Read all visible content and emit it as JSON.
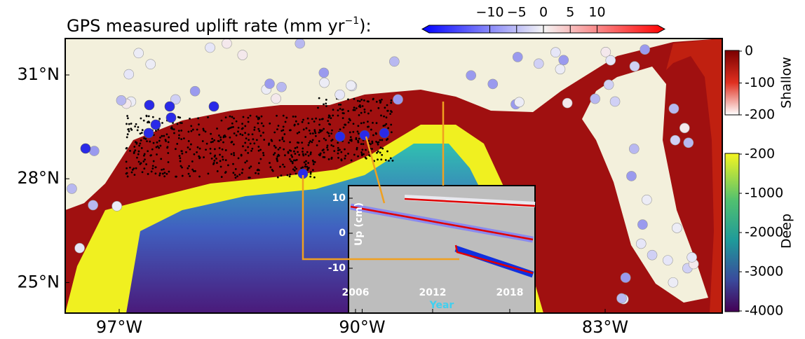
{
  "title": {
    "text": "GPS measured uplift rate (mm yr",
    "superscript": "−1",
    "suffix": "):"
  },
  "uplift_colorbar": {
    "ticks": [
      {
        "value": -10,
        "label": "−10"
      },
      {
        "value": -5,
        "label": "−5"
      },
      0,
      5,
      10
    ]
  },
  "latitude_ticks": [
    {
      "value": 31,
      "label": "31°N"
    },
    {
      "value": 28,
      "label": "28°N"
    },
    {
      "value": 25,
      "label": "25°N"
    }
  ],
  "longitude_ticks": [
    {
      "value": -97,
      "label": "97°W"
    },
    {
      "value": -90,
      "label": "90°W"
    },
    {
      "value": -83,
      "label": "83°W"
    }
  ],
  "shallow_colorbar": {
    "label": "Shallow",
    "ticks": [
      0,
      -100,
      -200
    ]
  },
  "deep_colorbar": {
    "label": "Deep",
    "ticks": [
      -200,
      -1000,
      -2000,
      -3000,
      -4000
    ]
  },
  "inset": {
    "ylabel": "Up (cm)",
    "xlabel": "Year",
    "yticks": [
      10,
      0,
      -10
    ],
    "xticks": [
      2006,
      2012,
      2018
    ]
  }
}
